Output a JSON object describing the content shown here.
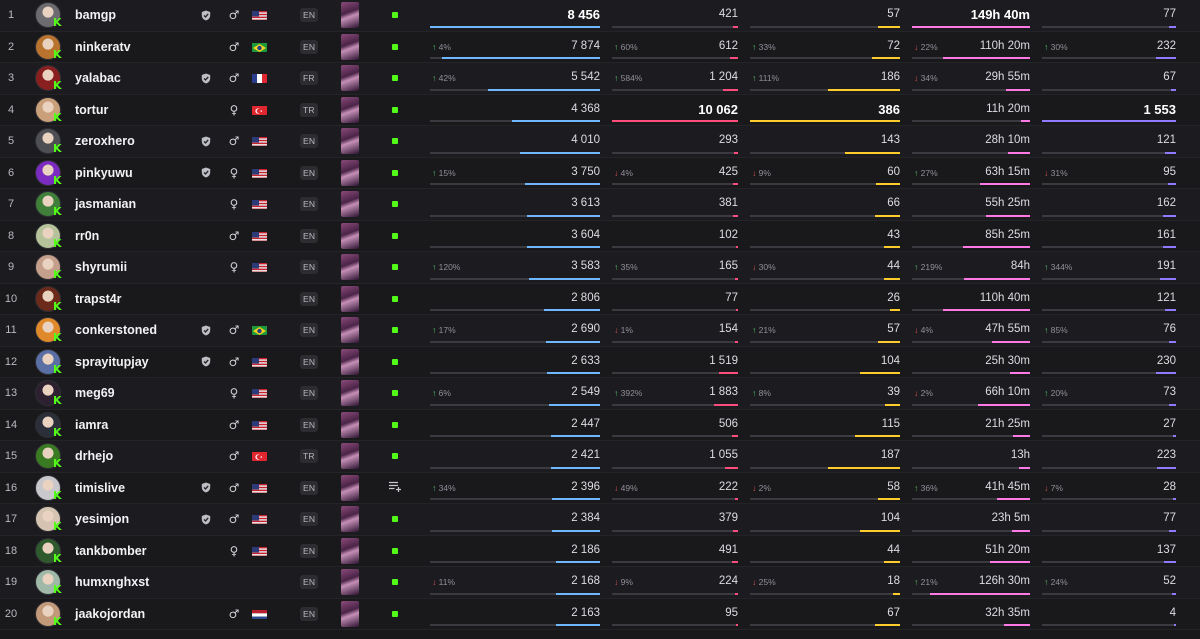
{
  "colors": {
    "watch": "#6fb7ff",
    "followers": "#ff4d7d",
    "peak": "#ffcc2e",
    "hours": "#ff7ae5",
    "avg": "#8f7bff",
    "live": "#53fc18",
    "kick": "#53fc18"
  },
  "rows": [
    {
      "rank": "1",
      "name": "bamgp",
      "verified": true,
      "gender": "♂",
      "flag": "US",
      "lang": "EN",
      "status": "live",
      "watch": {
        "val": "8 456",
        "chg": "",
        "dir": "",
        "pct": 1.0,
        "top": true
      },
      "followers": {
        "val": "421",
        "chg": "",
        "dir": "",
        "pct": 0.04
      },
      "peak": {
        "val": "57",
        "chg": "",
        "dir": "",
        "pct": 0.15
      },
      "hours": {
        "val": "149h 40m",
        "chg": "",
        "dir": "",
        "pct": 1.0,
        "top": true
      },
      "avg": {
        "val": "77",
        "chg": "",
        "dir": "",
        "pct": 0.05
      }
    },
    {
      "rank": "2",
      "name": "ninkeratv",
      "verified": false,
      "gender": "♂",
      "flag": "BR",
      "lang": "EN",
      "status": "live",
      "watch": {
        "val": "7 874",
        "chg": "4%",
        "dir": "up",
        "pct": 0.93
      },
      "followers": {
        "val": "612",
        "chg": "60%",
        "dir": "up",
        "pct": 0.06
      },
      "peak": {
        "val": "72",
        "chg": "33%",
        "dir": "up",
        "pct": 0.19
      },
      "hours": {
        "val": "110h 20m",
        "chg": "22%",
        "dir": "down",
        "pct": 0.74
      },
      "avg": {
        "val": "232",
        "chg": "30%",
        "dir": "up",
        "pct": 0.15
      }
    },
    {
      "rank": "3",
      "name": "yalabac",
      "verified": true,
      "gender": "♂",
      "flag": "FR",
      "lang": "FR",
      "status": "live",
      "watch": {
        "val": "5 542",
        "chg": "42%",
        "dir": "up",
        "pct": 0.66
      },
      "followers": {
        "val": "1 204",
        "chg": "584%",
        "dir": "up",
        "pct": 0.12
      },
      "peak": {
        "val": "186",
        "chg": "111%",
        "dir": "up",
        "pct": 0.48
      },
      "hours": {
        "val": "29h 55m",
        "chg": "34%",
        "dir": "down",
        "pct": 0.2
      },
      "avg": {
        "val": "67",
        "chg": "",
        "dir": "",
        "pct": 0.04
      }
    },
    {
      "rank": "4",
      "name": "tortur",
      "verified": false,
      "gender": "♀",
      "flag": "TR",
      "lang": "TR",
      "status": "live",
      "watch": {
        "val": "4 368",
        "chg": "",
        "dir": "",
        "pct": 0.52
      },
      "followers": {
        "val": "10 062",
        "chg": "",
        "dir": "",
        "pct": 1.0,
        "top": true
      },
      "peak": {
        "val": "386",
        "chg": "",
        "dir": "",
        "pct": 1.0,
        "top": true
      },
      "hours": {
        "val": "11h 20m",
        "chg": "",
        "dir": "",
        "pct": 0.08
      },
      "avg": {
        "val": "1 553",
        "chg": "",
        "dir": "",
        "pct": 1.0,
        "top": true
      }
    },
    {
      "rank": "5",
      "name": "zeroxhero",
      "verified": true,
      "gender": "♂",
      "flag": "US",
      "lang": "EN",
      "status": "live",
      "watch": {
        "val": "4 010",
        "chg": "",
        "dir": "",
        "pct": 0.47
      },
      "followers": {
        "val": "293",
        "chg": "",
        "dir": "",
        "pct": 0.03
      },
      "peak": {
        "val": "143",
        "chg": "",
        "dir": "",
        "pct": 0.37
      },
      "hours": {
        "val": "28h 10m",
        "chg": "",
        "dir": "",
        "pct": 0.19
      },
      "avg": {
        "val": "121",
        "chg": "",
        "dir": "",
        "pct": 0.08
      }
    },
    {
      "rank": "6",
      "name": "pinkyuwu",
      "verified": true,
      "gender": "♀",
      "flag": "US",
      "lang": "EN",
      "status": "live",
      "watch": {
        "val": "3 750",
        "chg": "15%",
        "dir": "up",
        "pct": 0.44
      },
      "followers": {
        "val": "425",
        "chg": "4%",
        "dir": "down",
        "pct": 0.04
      },
      "peak": {
        "val": "60",
        "chg": "9%",
        "dir": "down",
        "pct": 0.16
      },
      "hours": {
        "val": "63h 15m",
        "chg": "27%",
        "dir": "up",
        "pct": 0.42
      },
      "avg": {
        "val": "95",
        "chg": "31%",
        "dir": "down",
        "pct": 0.06
      }
    },
    {
      "rank": "7",
      "name": "jasmanian",
      "verified": false,
      "gender": "♀",
      "flag": "US",
      "lang": "EN",
      "status": "live",
      "watch": {
        "val": "3 613",
        "chg": "",
        "dir": "",
        "pct": 0.43
      },
      "followers": {
        "val": "381",
        "chg": "",
        "dir": "",
        "pct": 0.04
      },
      "peak": {
        "val": "66",
        "chg": "",
        "dir": "",
        "pct": 0.17
      },
      "hours": {
        "val": "55h 25m",
        "chg": "",
        "dir": "",
        "pct": 0.37
      },
      "avg": {
        "val": "162",
        "chg": "",
        "dir": "",
        "pct": 0.1
      }
    },
    {
      "rank": "8",
      "name": "rr0n",
      "verified": false,
      "gender": "♂",
      "flag": "US",
      "lang": "EN",
      "status": "live",
      "watch": {
        "val": "3 604",
        "chg": "",
        "dir": "",
        "pct": 0.43
      },
      "followers": {
        "val": "102",
        "chg": "",
        "dir": "",
        "pct": 0.01
      },
      "peak": {
        "val": "43",
        "chg": "",
        "dir": "",
        "pct": 0.11
      },
      "hours": {
        "val": "85h 25m",
        "chg": "",
        "dir": "",
        "pct": 0.57
      },
      "avg": {
        "val": "161",
        "chg": "",
        "dir": "",
        "pct": 0.1
      }
    },
    {
      "rank": "9",
      "name": "shyrumii",
      "verified": false,
      "gender": "♀",
      "flag": "US",
      "lang": "EN",
      "status": "live",
      "watch": {
        "val": "3 583",
        "chg": "120%",
        "dir": "up",
        "pct": 0.42
      },
      "followers": {
        "val": "165",
        "chg": "35%",
        "dir": "up",
        "pct": 0.02
      },
      "peak": {
        "val": "44",
        "chg": "30%",
        "dir": "down",
        "pct": 0.11
      },
      "hours": {
        "val": "84h",
        "chg": "219%",
        "dir": "up",
        "pct": 0.56
      },
      "avg": {
        "val": "191",
        "chg": "344%",
        "dir": "up",
        "pct": 0.12
      }
    },
    {
      "rank": "10",
      "name": "trapst4r",
      "verified": false,
      "gender": "",
      "flag": "",
      "lang": "EN",
      "status": "live",
      "watch": {
        "val": "2 806",
        "chg": "",
        "dir": "",
        "pct": 0.33
      },
      "followers": {
        "val": "77",
        "chg": "",
        "dir": "",
        "pct": 0.01
      },
      "peak": {
        "val": "26",
        "chg": "",
        "dir": "",
        "pct": 0.07
      },
      "hours": {
        "val": "110h 40m",
        "chg": "",
        "dir": "",
        "pct": 0.74
      },
      "avg": {
        "val": "121",
        "chg": "",
        "dir": "",
        "pct": 0.08
      }
    },
    {
      "rank": "11",
      "name": "conkerstoned",
      "verified": true,
      "gender": "♂",
      "flag": "BR",
      "lang": "EN",
      "status": "live",
      "watch": {
        "val": "2 690",
        "chg": "17%",
        "dir": "up",
        "pct": 0.32
      },
      "followers": {
        "val": "154",
        "chg": "1%",
        "dir": "down",
        "pct": 0.02
      },
      "peak": {
        "val": "57",
        "chg": "21%",
        "dir": "up",
        "pct": 0.15
      },
      "hours": {
        "val": "47h 55m",
        "chg": "4%",
        "dir": "down",
        "pct": 0.32
      },
      "avg": {
        "val": "76",
        "chg": "85%",
        "dir": "up",
        "pct": 0.05
      }
    },
    {
      "rank": "12",
      "name": "sprayitupjay",
      "verified": true,
      "gender": "♂",
      "flag": "US",
      "lang": "EN",
      "status": "live",
      "watch": {
        "val": "2 633",
        "chg": "",
        "dir": "",
        "pct": 0.31
      },
      "followers": {
        "val": "1 519",
        "chg": "",
        "dir": "",
        "pct": 0.15
      },
      "peak": {
        "val": "104",
        "chg": "",
        "dir": "",
        "pct": 0.27
      },
      "hours": {
        "val": "25h 30m",
        "chg": "",
        "dir": "",
        "pct": 0.17
      },
      "avg": {
        "val": "230",
        "chg": "",
        "dir": "",
        "pct": 0.15
      }
    },
    {
      "rank": "13",
      "name": "meg69",
      "verified": false,
      "gender": "♀",
      "flag": "US",
      "lang": "EN",
      "status": "live",
      "watch": {
        "val": "2 549",
        "chg": "6%",
        "dir": "up",
        "pct": 0.3
      },
      "followers": {
        "val": "1 883",
        "chg": "392%",
        "dir": "up",
        "pct": 0.19
      },
      "peak": {
        "val": "39",
        "chg": "8%",
        "dir": "up",
        "pct": 0.1
      },
      "hours": {
        "val": "66h 10m",
        "chg": "2%",
        "dir": "down",
        "pct": 0.44
      },
      "avg": {
        "val": "73",
        "chg": "20%",
        "dir": "up",
        "pct": 0.05
      }
    },
    {
      "rank": "14",
      "name": "iamra",
      "verified": false,
      "gender": "♂",
      "flag": "US",
      "lang": "EN",
      "status": "live",
      "watch": {
        "val": "2 447",
        "chg": "",
        "dir": "",
        "pct": 0.29
      },
      "followers": {
        "val": "506",
        "chg": "",
        "dir": "",
        "pct": 0.05
      },
      "peak": {
        "val": "115",
        "chg": "",
        "dir": "",
        "pct": 0.3
      },
      "hours": {
        "val": "21h 25m",
        "chg": "",
        "dir": "",
        "pct": 0.14
      },
      "avg": {
        "val": "27",
        "chg": "",
        "dir": "",
        "pct": 0.02
      }
    },
    {
      "rank": "15",
      "name": "drhejo",
      "verified": false,
      "gender": "♂",
      "flag": "TR",
      "lang": "TR",
      "status": "live",
      "watch": {
        "val": "2 421",
        "chg": "",
        "dir": "",
        "pct": 0.29
      },
      "followers": {
        "val": "1 055",
        "chg": "",
        "dir": "",
        "pct": 0.1
      },
      "peak": {
        "val": "187",
        "chg": "",
        "dir": "",
        "pct": 0.48
      },
      "hours": {
        "val": "13h",
        "chg": "",
        "dir": "",
        "pct": 0.09
      },
      "avg": {
        "val": "223",
        "chg": "",
        "dir": "",
        "pct": 0.14
      }
    },
    {
      "rank": "16",
      "name": "timislive",
      "verified": true,
      "gender": "♂",
      "flag": "US",
      "lang": "EN",
      "status": "playlist",
      "watch": {
        "val": "2 396",
        "chg": "34%",
        "dir": "up",
        "pct": 0.28
      },
      "followers": {
        "val": "222",
        "chg": "49%",
        "dir": "down",
        "pct": 0.02
      },
      "peak": {
        "val": "58",
        "chg": "2%",
        "dir": "down",
        "pct": 0.15
      },
      "hours": {
        "val": "41h 45m",
        "chg": "36%",
        "dir": "up",
        "pct": 0.28
      },
      "avg": {
        "val": "28",
        "chg": "7%",
        "dir": "down",
        "pct": 0.02
      }
    },
    {
      "rank": "17",
      "name": "yesimjon",
      "verified": true,
      "gender": "♂",
      "flag": "US",
      "lang": "EN",
      "status": "live",
      "watch": {
        "val": "2 384",
        "chg": "",
        "dir": "",
        "pct": 0.28
      },
      "followers": {
        "val": "379",
        "chg": "",
        "dir": "",
        "pct": 0.04
      },
      "peak": {
        "val": "104",
        "chg": "",
        "dir": "",
        "pct": 0.27
      },
      "hours": {
        "val": "23h 5m",
        "chg": "",
        "dir": "",
        "pct": 0.15
      },
      "avg": {
        "val": "77",
        "chg": "",
        "dir": "",
        "pct": 0.05
      }
    },
    {
      "rank": "18",
      "name": "tankbomber",
      "verified": false,
      "gender": "♀",
      "flag": "US",
      "lang": "EN",
      "status": "live",
      "watch": {
        "val": "2 186",
        "chg": "",
        "dir": "",
        "pct": 0.26
      },
      "followers": {
        "val": "491",
        "chg": "",
        "dir": "",
        "pct": 0.05
      },
      "peak": {
        "val": "44",
        "chg": "",
        "dir": "",
        "pct": 0.11
      },
      "hours": {
        "val": "51h 20m",
        "chg": "",
        "dir": "",
        "pct": 0.34
      },
      "avg": {
        "val": "137",
        "chg": "",
        "dir": "",
        "pct": 0.09
      }
    },
    {
      "rank": "19",
      "name": "humxnghxst",
      "verified": false,
      "gender": "",
      "flag": "",
      "lang": "EN",
      "status": "live",
      "watch": {
        "val": "2 168",
        "chg": "11%",
        "dir": "down",
        "pct": 0.26
      },
      "followers": {
        "val": "224",
        "chg": "9%",
        "dir": "down",
        "pct": 0.02
      },
      "peak": {
        "val": "18",
        "chg": "25%",
        "dir": "down",
        "pct": 0.05
      },
      "hours": {
        "val": "126h 30m",
        "chg": "21%",
        "dir": "up",
        "pct": 0.85
      },
      "avg": {
        "val": "52",
        "chg": "24%",
        "dir": "up",
        "pct": 0.03
      }
    },
    {
      "rank": "20",
      "name": "jaakojordan",
      "verified": false,
      "gender": "♂",
      "flag": "NL",
      "lang": "EN",
      "status": "live",
      "watch": {
        "val": "2 163",
        "chg": "",
        "dir": "",
        "pct": 0.26
      },
      "followers": {
        "val": "95",
        "chg": "",
        "dir": "",
        "pct": 0.01
      },
      "peak": {
        "val": "67",
        "chg": "",
        "dir": "",
        "pct": 0.17
      },
      "hours": {
        "val": "32h 35m",
        "chg": "",
        "dir": "",
        "pct": 0.22
      },
      "avg": {
        "val": "4",
        "chg": "",
        "dir": "",
        "pct": 0.01
      }
    }
  ]
}
